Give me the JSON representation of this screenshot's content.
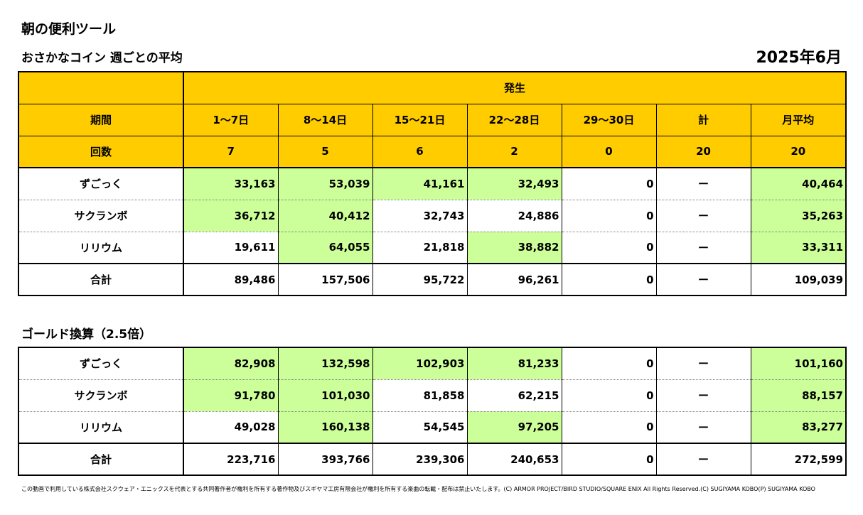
{
  "app_title": "朝の便利ツール",
  "sub_title": "おさかなコイン 週ごとの平均",
  "month": "2025年6月",
  "header": {
    "occurrence": "発生",
    "period_label": "期間",
    "periods": [
      "1〜7日",
      "8〜14日",
      "15〜21日",
      "22〜28日",
      "29〜30日",
      "計",
      "月平均"
    ],
    "count_label": "回数",
    "counts": [
      "7",
      "5",
      "6",
      "2",
      "0",
      "20",
      "20"
    ]
  },
  "coins": {
    "rows": [
      {
        "label": "ずごっく",
        "values": [
          "33,163",
          "53,039",
          "41,161",
          "32,493",
          "0",
          "ー",
          "40,464"
        ],
        "highlight": [
          true,
          true,
          true,
          true,
          false,
          false,
          true
        ]
      },
      {
        "label": "サクランボ",
        "values": [
          "36,712",
          "40,412",
          "32,743",
          "24,886",
          "0",
          "ー",
          "35,263"
        ],
        "highlight": [
          true,
          true,
          false,
          false,
          false,
          false,
          true
        ]
      },
      {
        "label": "リリウム",
        "values": [
          "19,611",
          "64,055",
          "21,818",
          "38,882",
          "0",
          "ー",
          "33,311"
        ],
        "highlight": [
          false,
          true,
          false,
          true,
          false,
          false,
          true
        ]
      }
    ],
    "total": {
      "label": "合計",
      "values": [
        "89,486",
        "157,506",
        "95,722",
        "96,261",
        "0",
        "ー",
        "109,039"
      ]
    }
  },
  "gold_title": "ゴールド換算（2.5倍）",
  "gold": {
    "rows": [
      {
        "label": "ずごっく",
        "values": [
          "82,908",
          "132,598",
          "102,903",
          "81,233",
          "0",
          "ー",
          "101,160"
        ],
        "highlight": [
          true,
          true,
          true,
          true,
          false,
          false,
          true
        ]
      },
      {
        "label": "サクランボ",
        "values": [
          "91,780",
          "101,030",
          "81,858",
          "62,215",
          "0",
          "ー",
          "88,157"
        ],
        "highlight": [
          true,
          true,
          false,
          false,
          false,
          false,
          true
        ]
      },
      {
        "label": "リリウム",
        "values": [
          "49,028",
          "160,138",
          "54,545",
          "97,205",
          "0",
          "ー",
          "83,277"
        ],
        "highlight": [
          false,
          true,
          false,
          true,
          false,
          false,
          true
        ]
      }
    ],
    "total": {
      "label": "合計",
      "values": [
        "223,716",
        "393,766",
        "239,306",
        "240,653",
        "0",
        "ー",
        "272,599"
      ]
    }
  },
  "footer": "この動画で利用している株式会社スクウェア・エニックスを代表とする共同著作者が権利を所有する著作物及びスギヤマ工房有限会社が権利を所有する楽曲の転載・配布は禁止いたします。(C) ARMOR PROJECT/BIRD STUDIO/SQUARE ENIX All Rights Reserved.(C) SUGIYAMA KOBO(P) SUGIYAMA KOBO",
  "colors": {
    "header_bg": "#ffcc00",
    "highlight_bg": "#ccff99"
  }
}
